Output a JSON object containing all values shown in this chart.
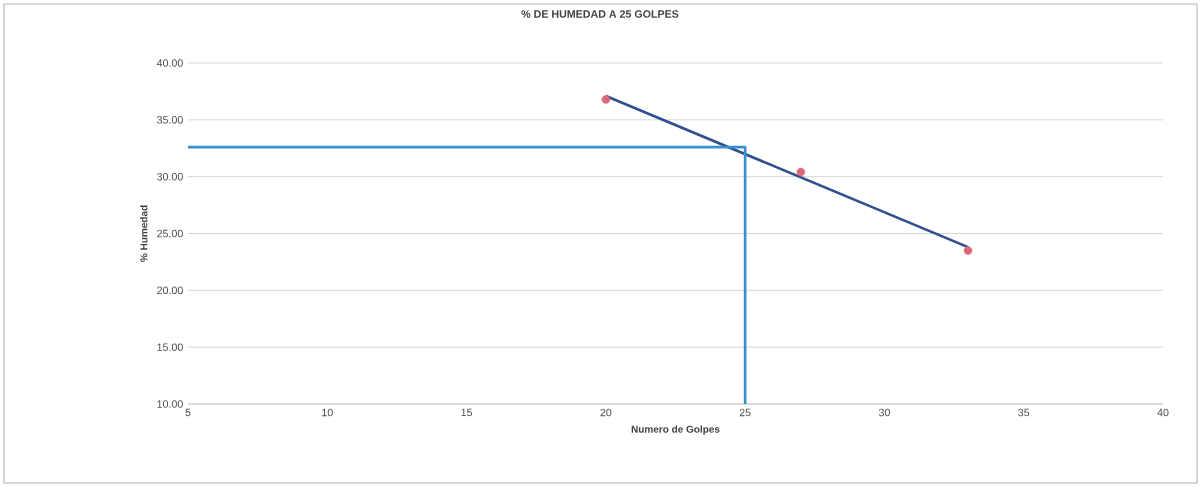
{
  "chart_data": {
    "type": "scatter",
    "title": "% DE HUMEDAD A 25 GOLPES",
    "xlabel": "Numero de Golpes",
    "ylabel": "% Humedad",
    "xlim": [
      5,
      40
    ],
    "xticks": [
      5,
      10,
      15,
      20,
      25,
      30,
      35,
      40
    ],
    "ylim": [
      10,
      40
    ],
    "yticks": [
      {
        "value": 10,
        "label": "10.00"
      },
      {
        "value": 15,
        "label": "15.00"
      },
      {
        "value": 20,
        "label": "20.00"
      },
      {
        "value": 25,
        "label": "25.00"
      },
      {
        "value": 30,
        "label": "30.00"
      },
      {
        "value": 35,
        "label": "35.00"
      },
      {
        "value": 40,
        "label": "40.00"
      }
    ],
    "grid": "y",
    "marker": "circle",
    "series": [
      {
        "color": "#d9697a",
        "x": [
          20,
          27,
          33
        ],
        "values": [
          36.8,
          30.4,
          23.5
        ]
      },
      {
        "type": "line",
        "color": "#2f4f8f",
        "marker": "none",
        "x": [
          20,
          33
        ],
        "values": [
          37.1,
          23.8
        ]
      },
      {
        "type": "line",
        "color": "#3a8fd0",
        "marker": "none",
        "x": [
          5,
          25,
          25
        ],
        "values": [
          32.6,
          32.6,
          10
        ]
      }
    ]
  }
}
